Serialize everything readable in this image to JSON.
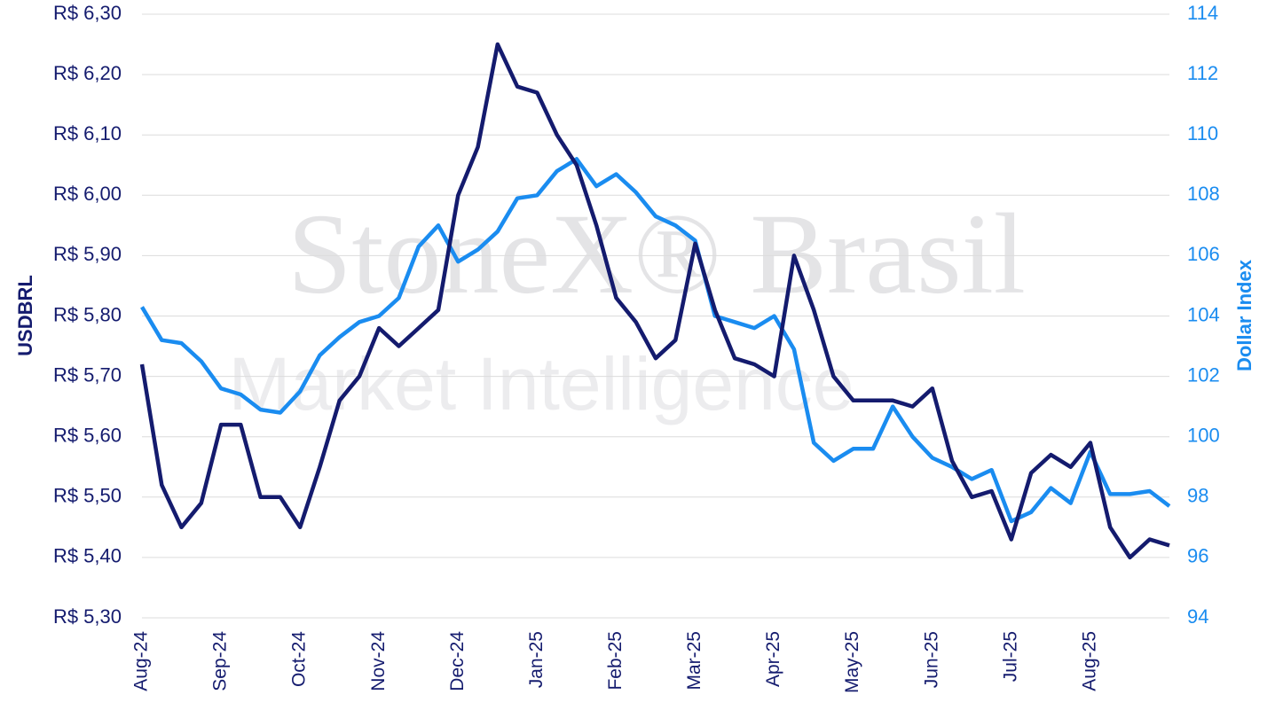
{
  "chart_data": {
    "type": "line",
    "y_label": "USDBRL",
    "y2_label": "Dollar Index",
    "watermark": [
      "StoneX® Brasil",
      "Market Intelligence"
    ],
    "categories": [
      "Aug-24",
      null,
      null,
      null,
      "Sep-24",
      null,
      null,
      null,
      "Oct-24",
      null,
      null,
      null,
      "Nov-24",
      null,
      null,
      null,
      "Dec-24",
      null,
      null,
      null,
      "Jan-25",
      null,
      null,
      null,
      "Feb-25",
      null,
      null,
      null,
      "Mar-25",
      null,
      null,
      null,
      "Apr-25",
      null,
      null,
      null,
      "May-25",
      null,
      null,
      null,
      "Jun-25",
      null,
      null,
      null,
      "Jul-25",
      null,
      null,
      null,
      "Aug-25",
      null,
      null,
      null,
      null
    ],
    "series": [
      {
        "name": "USDBRL",
        "color": "#141b6e",
        "values": [
          5.72,
          5.52,
          5.45,
          5.49,
          5.62,
          5.62,
          5.5,
          5.5,
          5.45,
          5.55,
          5.66,
          5.7,
          5.78,
          5.75,
          5.78,
          5.81,
          6.0,
          6.08,
          6.25,
          6.18,
          6.17,
          6.1,
          6.05,
          5.95,
          5.83,
          5.79,
          5.73,
          5.76,
          5.92,
          5.81,
          5.73,
          5.72,
          5.7,
          5.9,
          5.81,
          5.7,
          5.66,
          5.66,
          5.66,
          5.65,
          5.68,
          5.56,
          5.5,
          5.51,
          5.43,
          5.54,
          5.57,
          5.55,
          5.59,
          5.45,
          5.4,
          5.43,
          5.42
        ]
      },
      {
        "name": "Dollar Index",
        "color": "#1a8cf0",
        "axis": "y2",
        "values": [
          104.3,
          103.2,
          103.1,
          102.5,
          101.6,
          101.4,
          100.9,
          100.8,
          101.5,
          102.7,
          103.3,
          103.8,
          104.0,
          104.6,
          106.3,
          107.0,
          105.8,
          106.2,
          106.8,
          107.9,
          108.0,
          108.8,
          109.2,
          108.3,
          108.7,
          108.1,
          107.3,
          107.0,
          106.5,
          104.0,
          103.8,
          103.6,
          104.0,
          102.9,
          99.8,
          99.2,
          99.6,
          99.6,
          101.0,
          100.0,
          99.3,
          99.0,
          98.6,
          98.9,
          97.2,
          97.5,
          98.3,
          97.8,
          99.5,
          98.1,
          98.1,
          98.2,
          97.7
        ]
      }
    ],
    "ylim": [
      5.3,
      6.3
    ],
    "yticks": [
      {
        "value": 5.3,
        "label": "R$ 5,30"
      },
      {
        "value": 5.4,
        "label": "R$ 5,40"
      },
      {
        "value": 5.5,
        "label": "R$ 5,50"
      },
      {
        "value": 5.6,
        "label": "R$ 5,60"
      },
      {
        "value": 5.7,
        "label": "R$ 5,70"
      },
      {
        "value": 5.8,
        "label": "R$ 5,80"
      },
      {
        "value": 5.9,
        "label": "R$ 5,90"
      },
      {
        "value": 6.0,
        "label": "R$ 6,00"
      },
      {
        "value": 6.1,
        "label": "R$ 6,10"
      },
      {
        "value": 6.2,
        "label": "R$ 6,20"
      },
      {
        "value": 6.3,
        "label": "R$ 6,30"
      }
    ],
    "y2lim": [
      94,
      114
    ],
    "y2ticks": [
      94,
      96,
      98,
      100,
      102,
      104,
      106,
      108,
      110,
      112,
      114
    ],
    "grid": true
  }
}
